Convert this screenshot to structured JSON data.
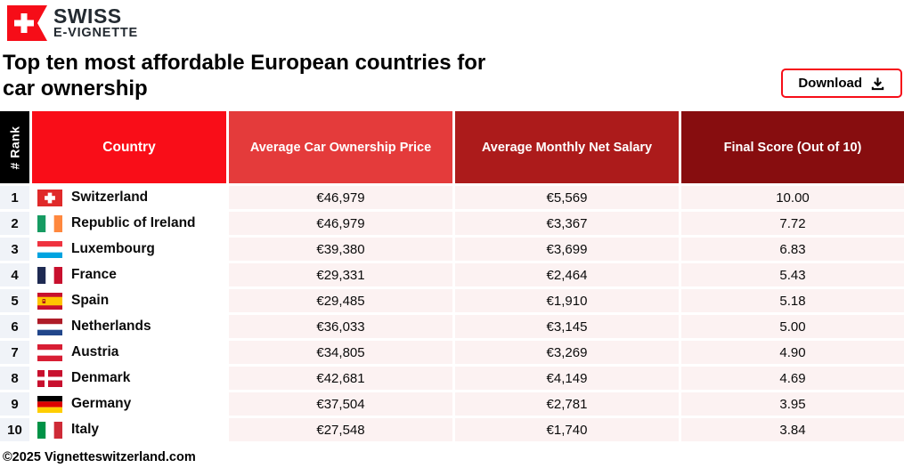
{
  "brand": {
    "line1": "SWISS",
    "line2": "E-VIGNETTE"
  },
  "page": {
    "title_line1": "Top ten most affordable European countries for",
    "title_line2": "car ownership",
    "footer": "©2025 Vignetteswitzerland.com"
  },
  "toolbar": {
    "download_label": "Download",
    "download_icon": "download-icon"
  },
  "colors": {
    "brand_red": "#f60d18",
    "header_rank_bg": "#000000",
    "header_country_bg": "#f90d18",
    "header_price_bg": "#e43b3b",
    "header_salary_bg": "#ac1b1b",
    "header_score_bg": "#870d0f",
    "rank_cell_bg": "#f0f3f8",
    "value_cell_bg": "#fcf2f2"
  },
  "table": {
    "columns": [
      "# Rank",
      "Country",
      "Average Car Ownership Price",
      "Average Monthly Net Salary",
      "Final Score (Out of 10)"
    ],
    "rows": [
      {
        "rank": "1",
        "flag": "switzerland",
        "country": "Switzerland",
        "price": "€46,979",
        "salary": "€5,569",
        "score": "10.00"
      },
      {
        "rank": "2",
        "flag": "ireland",
        "country": "Republic of Ireland",
        "price": "€46,979",
        "salary": "€3,367",
        "score": "7.72"
      },
      {
        "rank": "3",
        "flag": "luxembourg",
        "country": "Luxembourg",
        "price": "€39,380",
        "salary": "€3,699",
        "score": "6.83"
      },
      {
        "rank": "4",
        "flag": "france",
        "country": "France",
        "price": "€29,331",
        "salary": "€2,464",
        "score": "5.43"
      },
      {
        "rank": "5",
        "flag": "spain",
        "country": "Spain",
        "price": "€29,485",
        "salary": "€1,910",
        "score": "5.18"
      },
      {
        "rank": "6",
        "flag": "netherlands",
        "country": "Netherlands",
        "price": "€36,033",
        "salary": "€3,145",
        "score": "5.00"
      },
      {
        "rank": "7",
        "flag": "austria",
        "country": "Austria",
        "price": "€34,805",
        "salary": "€3,269",
        "score": "4.90"
      },
      {
        "rank": "8",
        "flag": "denmark",
        "country": "Denmark",
        "price": "€42,681",
        "salary": "€4,149",
        "score": "4.69"
      },
      {
        "rank": "9",
        "flag": "germany",
        "country": "Germany",
        "price": "€37,504",
        "salary": "€2,781",
        "score": "3.95"
      },
      {
        "rank": "10",
        "flag": "italy",
        "country": "Italy",
        "price": "€27,548",
        "salary": "€1,740",
        "score": "3.84"
      }
    ]
  },
  "chart_data": {
    "type": "table",
    "title": "Top ten most affordable European countries for car ownership",
    "columns": [
      "# Rank",
      "Country",
      "Average Car Ownership Price",
      "Average Monthly Net Salary",
      "Final Score (Out of 10)"
    ],
    "rows": [
      [
        1,
        "Switzerland",
        46979,
        5569,
        10.0
      ],
      [
        2,
        "Republic of Ireland",
        46979,
        3367,
        7.72
      ],
      [
        3,
        "Luxembourg",
        39380,
        3699,
        6.83
      ],
      [
        4,
        "France",
        29331,
        2464,
        5.43
      ],
      [
        5,
        "Spain",
        29485,
        1910,
        5.18
      ],
      [
        6,
        "Netherlands",
        36033,
        3145,
        5.0
      ],
      [
        7,
        "Austria",
        34805,
        3269,
        4.9
      ],
      [
        8,
        "Denmark",
        42681,
        4149,
        4.69
      ],
      [
        9,
        "Germany",
        37504,
        2781,
        3.95
      ],
      [
        10,
        "Italy",
        27548,
        1740,
        3.84
      ]
    ],
    "currency": "EUR"
  }
}
